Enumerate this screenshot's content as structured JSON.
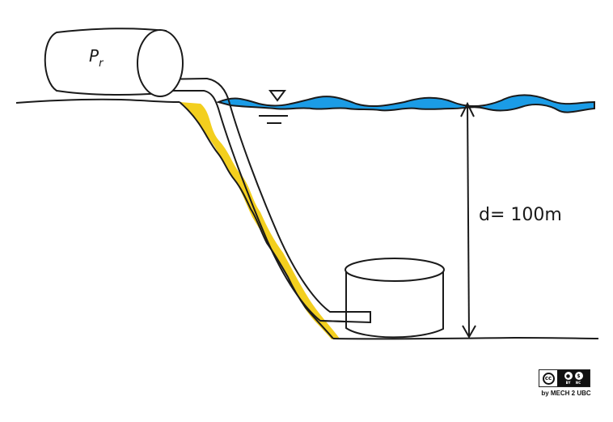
{
  "diagram": {
    "pressure_label": "P",
    "pressure_subscript": "r",
    "depth_label": "d= 100m",
    "colors": {
      "water": "#1b9ce6",
      "cliff_highlight": "#f3cf1e",
      "ink": "#1a1a1a"
    }
  },
  "license": {
    "badge_cc": "cc",
    "badge_by": "BY",
    "badge_nc": "NC",
    "credit": "by MECH 2 UBC"
  }
}
